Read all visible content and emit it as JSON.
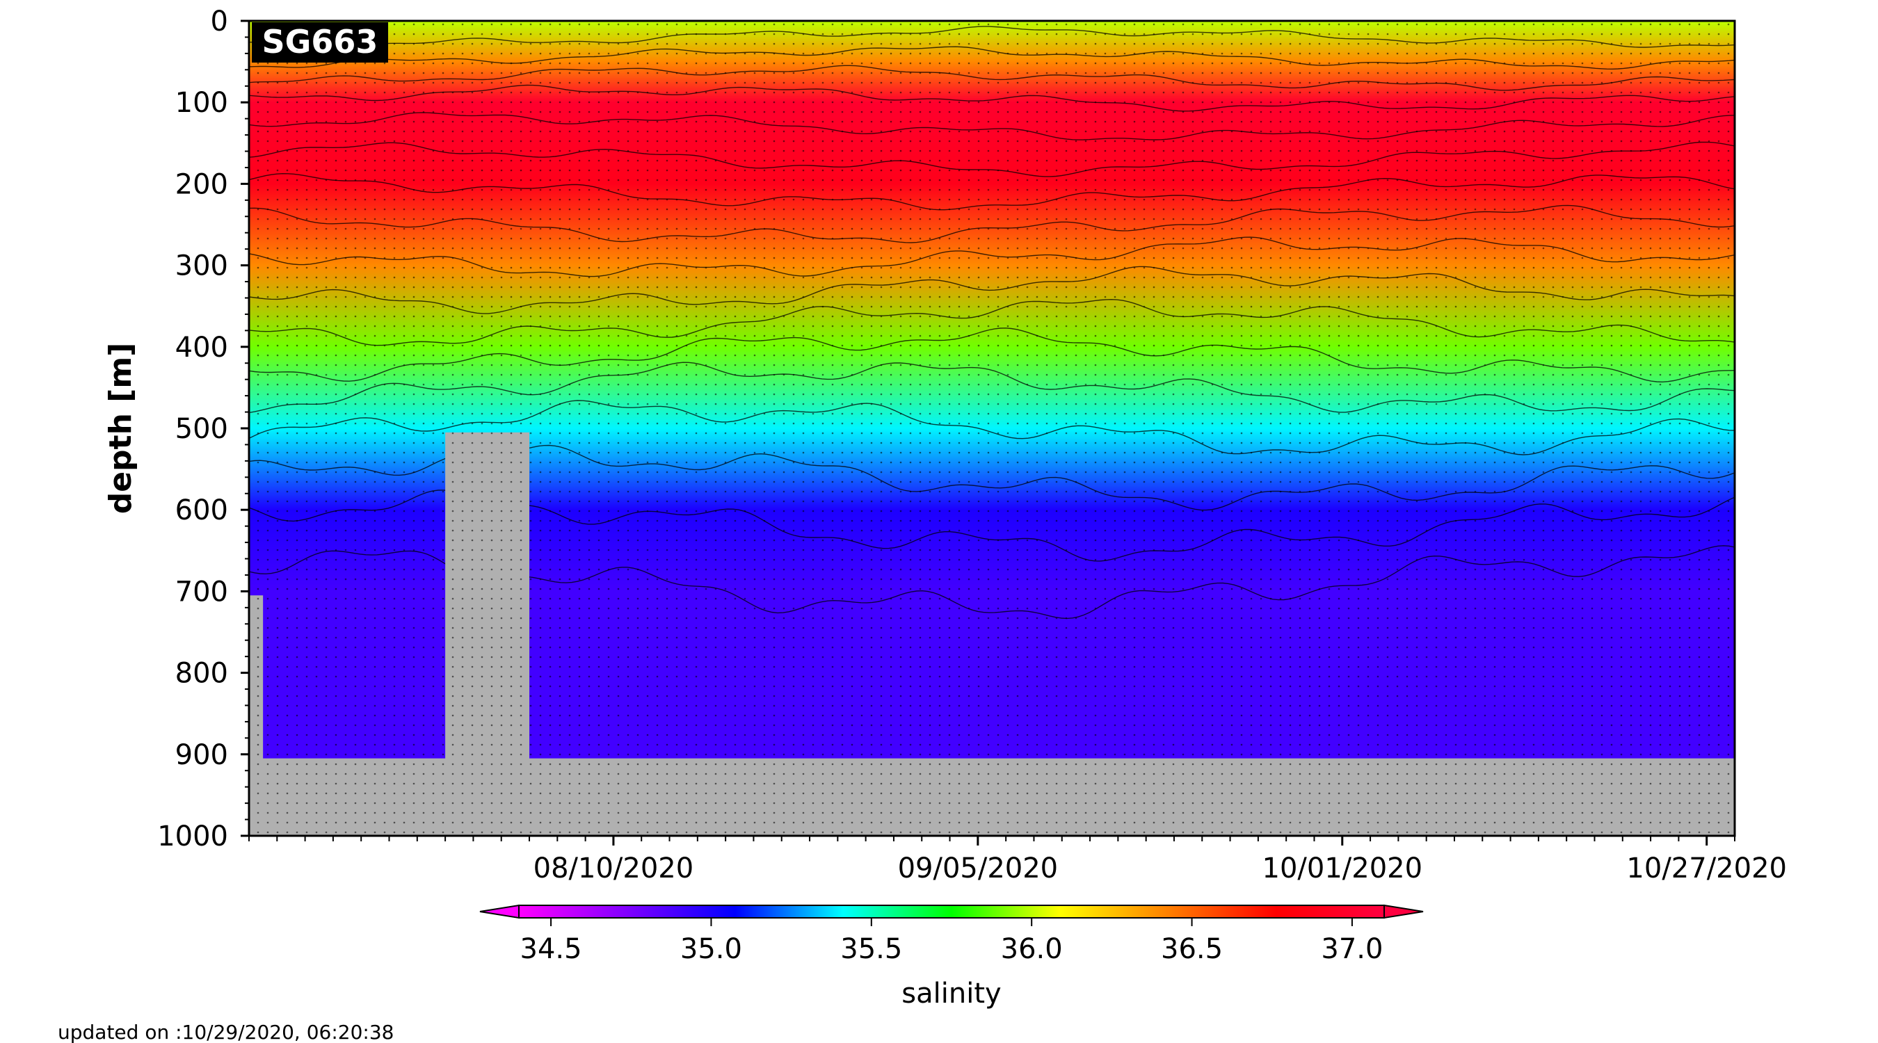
{
  "chart_data": {
    "type": "heatmap",
    "glider_id": "SG663",
    "xlabel": "",
    "ylabel": "depth [m]",
    "y_ticks": [
      0,
      100,
      200,
      300,
      400,
      500,
      600,
      700,
      800,
      900,
      1000
    ],
    "ylim": [
      1000,
      0
    ],
    "x_ticks": [
      "08/10/2020",
      "09/05/2020",
      "10/01/2020",
      "10/27/2020"
    ],
    "xlim": [
      "2020-07-15",
      "2020-10-29"
    ],
    "colorbar": {
      "label": "salinity",
      "ticks": [
        34.5,
        35.0,
        35.5,
        36.0,
        36.5,
        37.0
      ],
      "range": [
        34.4,
        37.1
      ],
      "extend": "both",
      "colormap": [
        "#ff00ff",
        "#8000ff",
        "#0000ff",
        "#00ffff",
        "#00ff00",
        "#ffff00",
        "#ff8000",
        "#ff0000",
        "#ff0040"
      ]
    },
    "mean_profile": [
      {
        "depth": 0,
        "salinity": 36.0
      },
      {
        "depth": 50,
        "salinity": 36.4
      },
      {
        "depth": 100,
        "salinity": 37.0
      },
      {
        "depth": 200,
        "salinity": 36.9
      },
      {
        "depth": 300,
        "salinity": 36.4
      },
      {
        "depth": 400,
        "salinity": 35.9
      },
      {
        "depth": 500,
        "salinity": 35.4
      },
      {
        "depth": 600,
        "salinity": 35.0
      },
      {
        "depth": 700,
        "salinity": 34.9
      },
      {
        "depth": 900,
        "salinity": 34.9
      }
    ],
    "data_gaps": [
      {
        "start": "2020-07-15",
        "end": "2020-07-16",
        "from_depth": 705
      },
      {
        "start": "2020-07-29",
        "end": "2020-08-04",
        "from_depth": 505
      }
    ],
    "max_profile_depth": 905,
    "missing_color": "#b0b0b0"
  },
  "footer": {
    "updated_text": "updated on :10/29/2020, 06:20:38"
  }
}
